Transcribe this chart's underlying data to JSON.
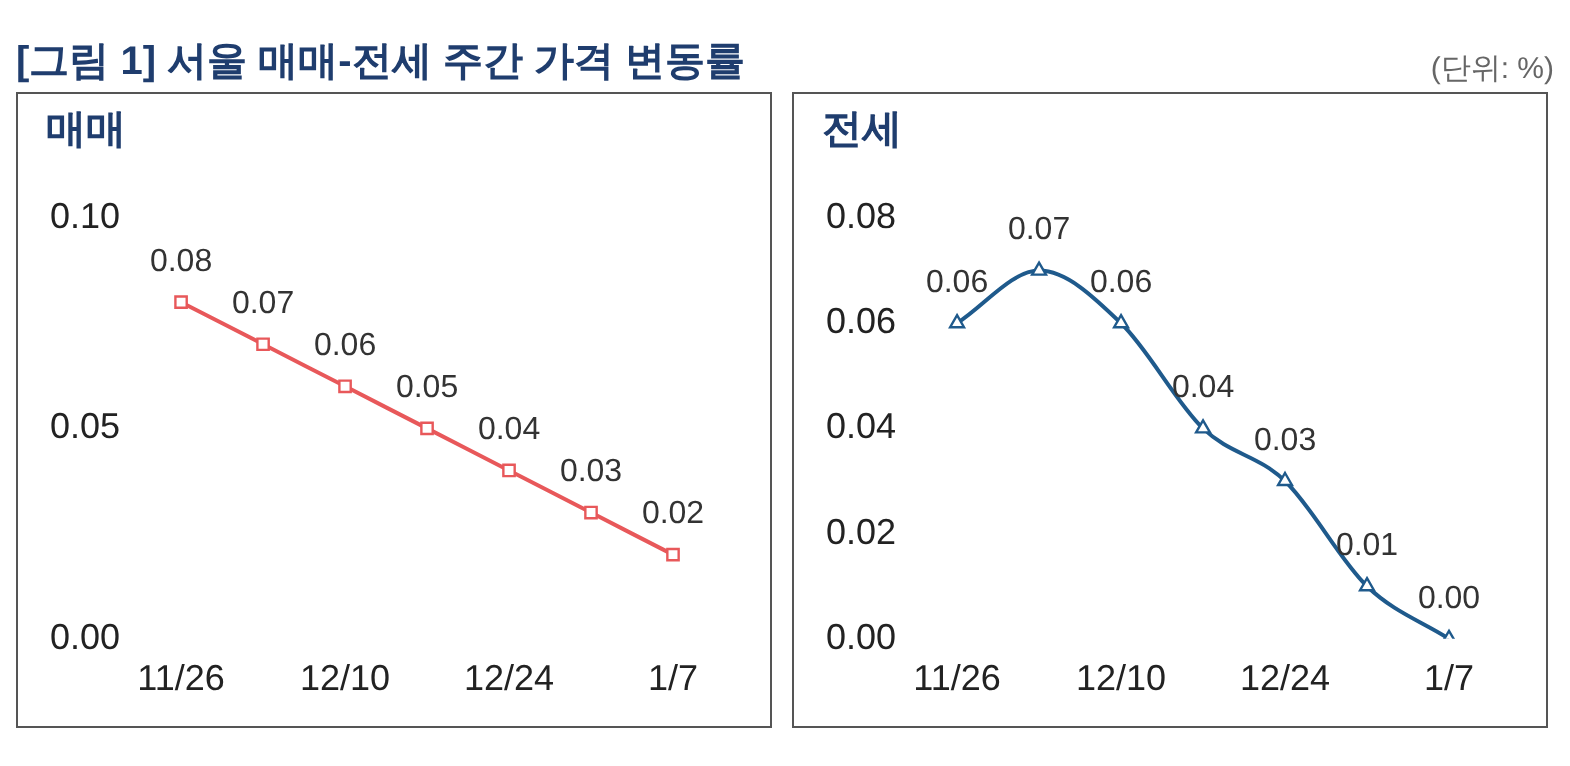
{
  "chart_data": [
    {
      "type": "line",
      "title": "[그림 1] 서울 매매-전세 주간 가격 변동률",
      "subtitle": "매매",
      "categories": [
        "11/26",
        null,
        "12/10",
        null,
        "12/24",
        null,
        "1/7"
      ],
      "series": [
        {
          "color": "#e8585a",
          "values": [
            0.08,
            0.07,
            0.06,
            0.05,
            0.04,
            0.03,
            0.02
          ]
        }
      ],
      "ylim": [
        0,
        0.1
      ],
      "yticks": [
        {
          "value": 0,
          "label": "0.00"
        },
        {
          "value": 0.05,
          "label": "0.05"
        },
        {
          "value": 0.1,
          "label": "0.10"
        }
      ],
      "marker": "square",
      "grid": false,
      "legend": false,
      "data_labels": true
    },
    {
      "type": "line",
      "title": "전세",
      "annotations": [
        "(단위: %)"
      ],
      "categories": [
        "11/26",
        null,
        "12/10",
        null,
        "12/24",
        null,
        "1/7"
      ],
      "series": [
        {
          "color": "#1f5a8c",
          "values": [
            0.06,
            0.07,
            0.06,
            0.04,
            0.03,
            0.01,
            0.0
          ],
          "value_labels": [
            "0.06",
            "0.07",
            "0.06",
            "0.04",
            "0.03",
            "0.01",
            "0.00"
          ]
        }
      ],
      "ylim": [
        0,
        0.08
      ],
      "yticks": [
        {
          "value": 0,
          "label": "0.00"
        },
        {
          "value": 0.02,
          "label": "0.02"
        },
        {
          "value": 0.04,
          "label": "0.04"
        },
        {
          "value": 0.06,
          "label": "0.06"
        },
        {
          "value": 0.08,
          "label": "0.08"
        }
      ],
      "marker": "triangle",
      "grid": false,
      "legend": false
    }
  ]
}
